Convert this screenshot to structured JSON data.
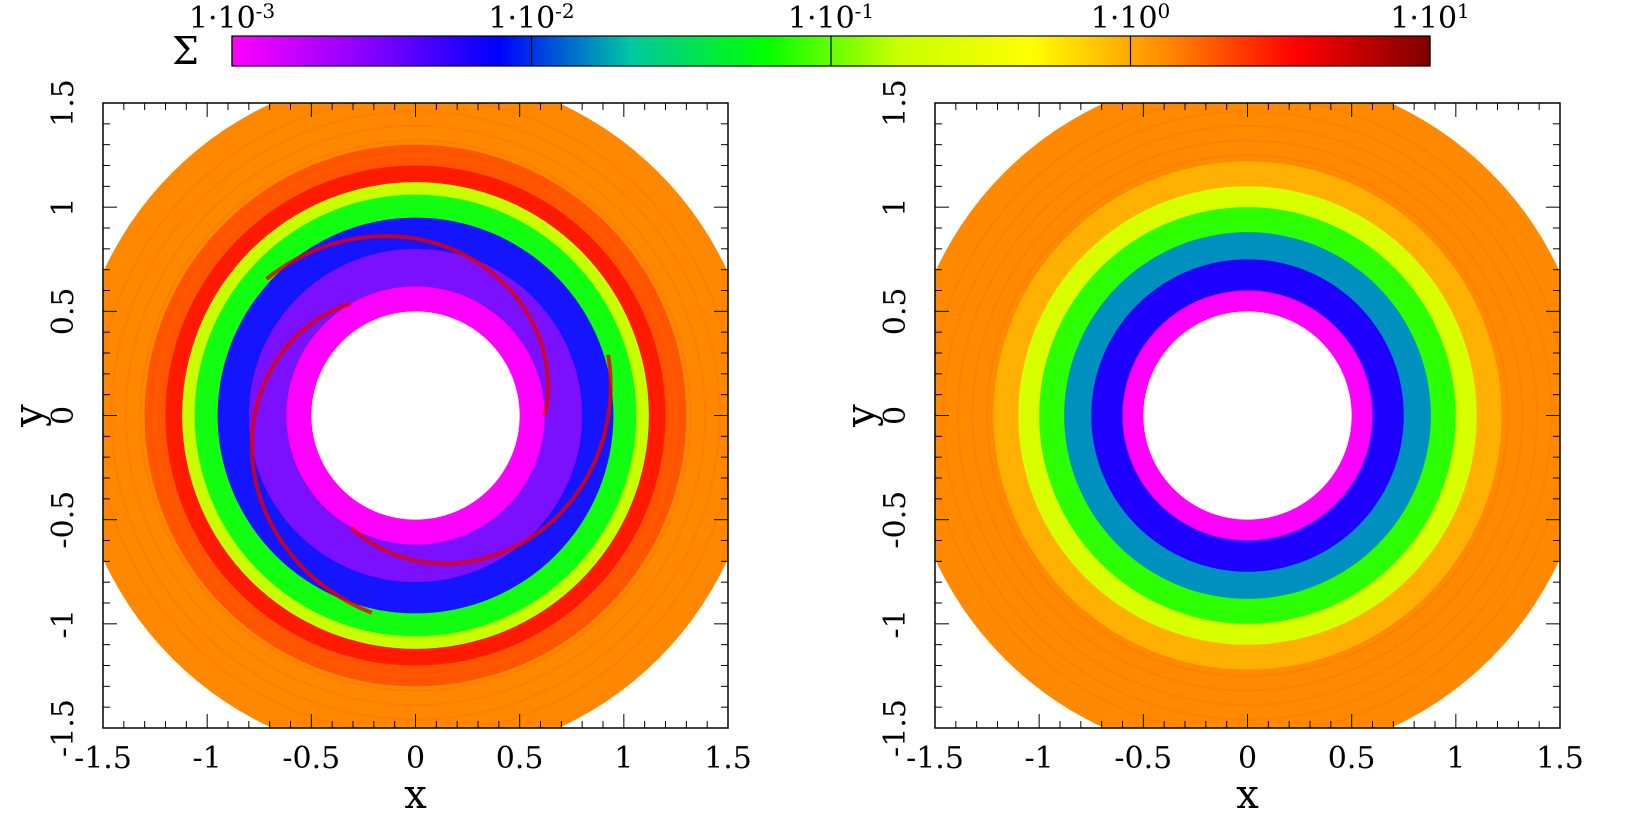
{
  "chart_data": {
    "type": "heatmap",
    "colorbar": {
      "label": "Σ",
      "scale": "log",
      "range": [
        0.001,
        10
      ],
      "ticks": [
        {
          "base": "1·10",
          "exp": "-3"
        },
        {
          "base": "1·10",
          "exp": "-2"
        },
        {
          "base": "1·10",
          "exp": "-1"
        },
        {
          "base": "1·10",
          "exp": "0"
        },
        {
          "base": "1·10",
          "exp": "1"
        }
      ],
      "colors": [
        "#ff00ff",
        "#8a00ff",
        "#0000ff",
        "#00c8a0",
        "#00ff00",
        "#c8ff00",
        "#ffff00",
        "#ff8c00",
        "#ff0000",
        "#800000"
      ]
    },
    "panels": [
      {
        "name": "left",
        "xlabel": "x",
        "ylabel": "y",
        "xlim": [
          -1.5,
          1.5
        ],
        "ylim": [
          -1.5,
          1.5
        ],
        "xticks": [
          "-1.5",
          "-1",
          "-0.5",
          "0",
          "0.5",
          "1",
          "1.5"
        ],
        "yticks": [
          "-1.5",
          "-1",
          "-0.5",
          "0",
          "0.5",
          "1",
          "1.5"
        ],
        "inner_radius": 0.5,
        "outer_radius": 1.65,
        "field": {
          "background": "#ff8800",
          "rings": [
            {
              "r_in": 0.5,
              "r_out": 0.62,
              "color": "#ff00ff"
            },
            {
              "r_in": 0.62,
              "r_out": 0.8,
              "color": "#7a10ff"
            },
            {
              "r_in": 0.8,
              "r_out": 0.95,
              "color": "#1414ff"
            },
            {
              "r_in": 0.95,
              "r_out": 1.06,
              "color": "#12ff12"
            },
            {
              "r_in": 1.06,
              "r_out": 1.12,
              "color": "#c8ff00"
            },
            {
              "r_in": 1.12,
              "r_out": 1.2,
              "color": "#ff1a00"
            },
            {
              "r_in": 1.2,
              "r_out": 1.3,
              "color": "#ff5500"
            }
          ],
          "spiral_color": "#e60000"
        }
      },
      {
        "name": "right",
        "xlabel": "x",
        "ylabel": "y",
        "xlim": [
          -1.5,
          1.5
        ],
        "ylim": [
          -1.5,
          1.5
        ],
        "xticks": [
          "-1.5",
          "-1",
          "-0.5",
          "0",
          "0.5",
          "1",
          "1.5"
        ],
        "yticks": [
          "-1.5",
          "-1",
          "-0.5",
          "0",
          "0.5",
          "1",
          "1.5"
        ],
        "inner_radius": 0.5,
        "outer_radius": 1.65,
        "field": {
          "background": "#ff8a00",
          "rings": [
            {
              "r_in": 0.5,
              "r_out": 0.6,
              "color": "#ff00ff"
            },
            {
              "r_in": 0.6,
              "r_out": 0.75,
              "color": "#1e00ff"
            },
            {
              "r_in": 0.75,
              "r_out": 0.88,
              "color": "#0090c0"
            },
            {
              "r_in": 0.88,
              "r_out": 1.0,
              "color": "#2bff00"
            },
            {
              "r_in": 1.0,
              "r_out": 1.1,
              "color": "#d8ff00"
            },
            {
              "r_in": 1.1,
              "r_out": 1.22,
              "color": "#ffb000"
            }
          ],
          "spiral_color": ""
        }
      }
    ]
  }
}
